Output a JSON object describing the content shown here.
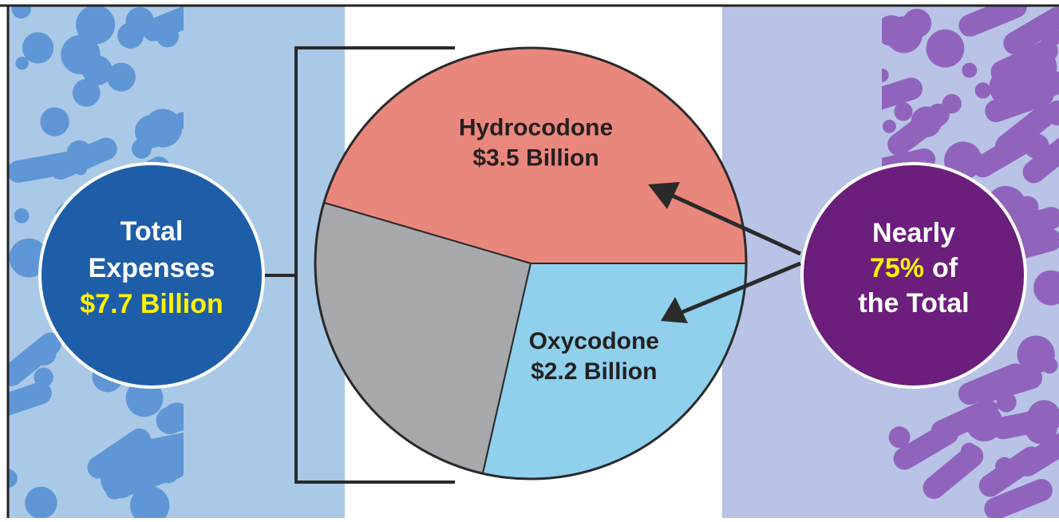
{
  "chart_data": {
    "type": "pie",
    "categories": [
      "Hydrocodone",
      null,
      "Oxycodone"
    ],
    "values": [
      3.5,
      2.0,
      2.2
    ],
    "value_labels": [
      "$3.5 Billion",
      null,
      "$2.2 Billion"
    ],
    "colors": [
      "#ea877d",
      "#a7a8ab",
      "#8fd0ec"
    ],
    "total": {
      "lines": [
        "Total",
        "Expenses"
      ],
      "value_label": "$7.7 Billion"
    },
    "share": {
      "lines": [
        "Nearly",
        "the Total"
      ],
      "highlight": "75%",
      "after": "of"
    }
  }
}
